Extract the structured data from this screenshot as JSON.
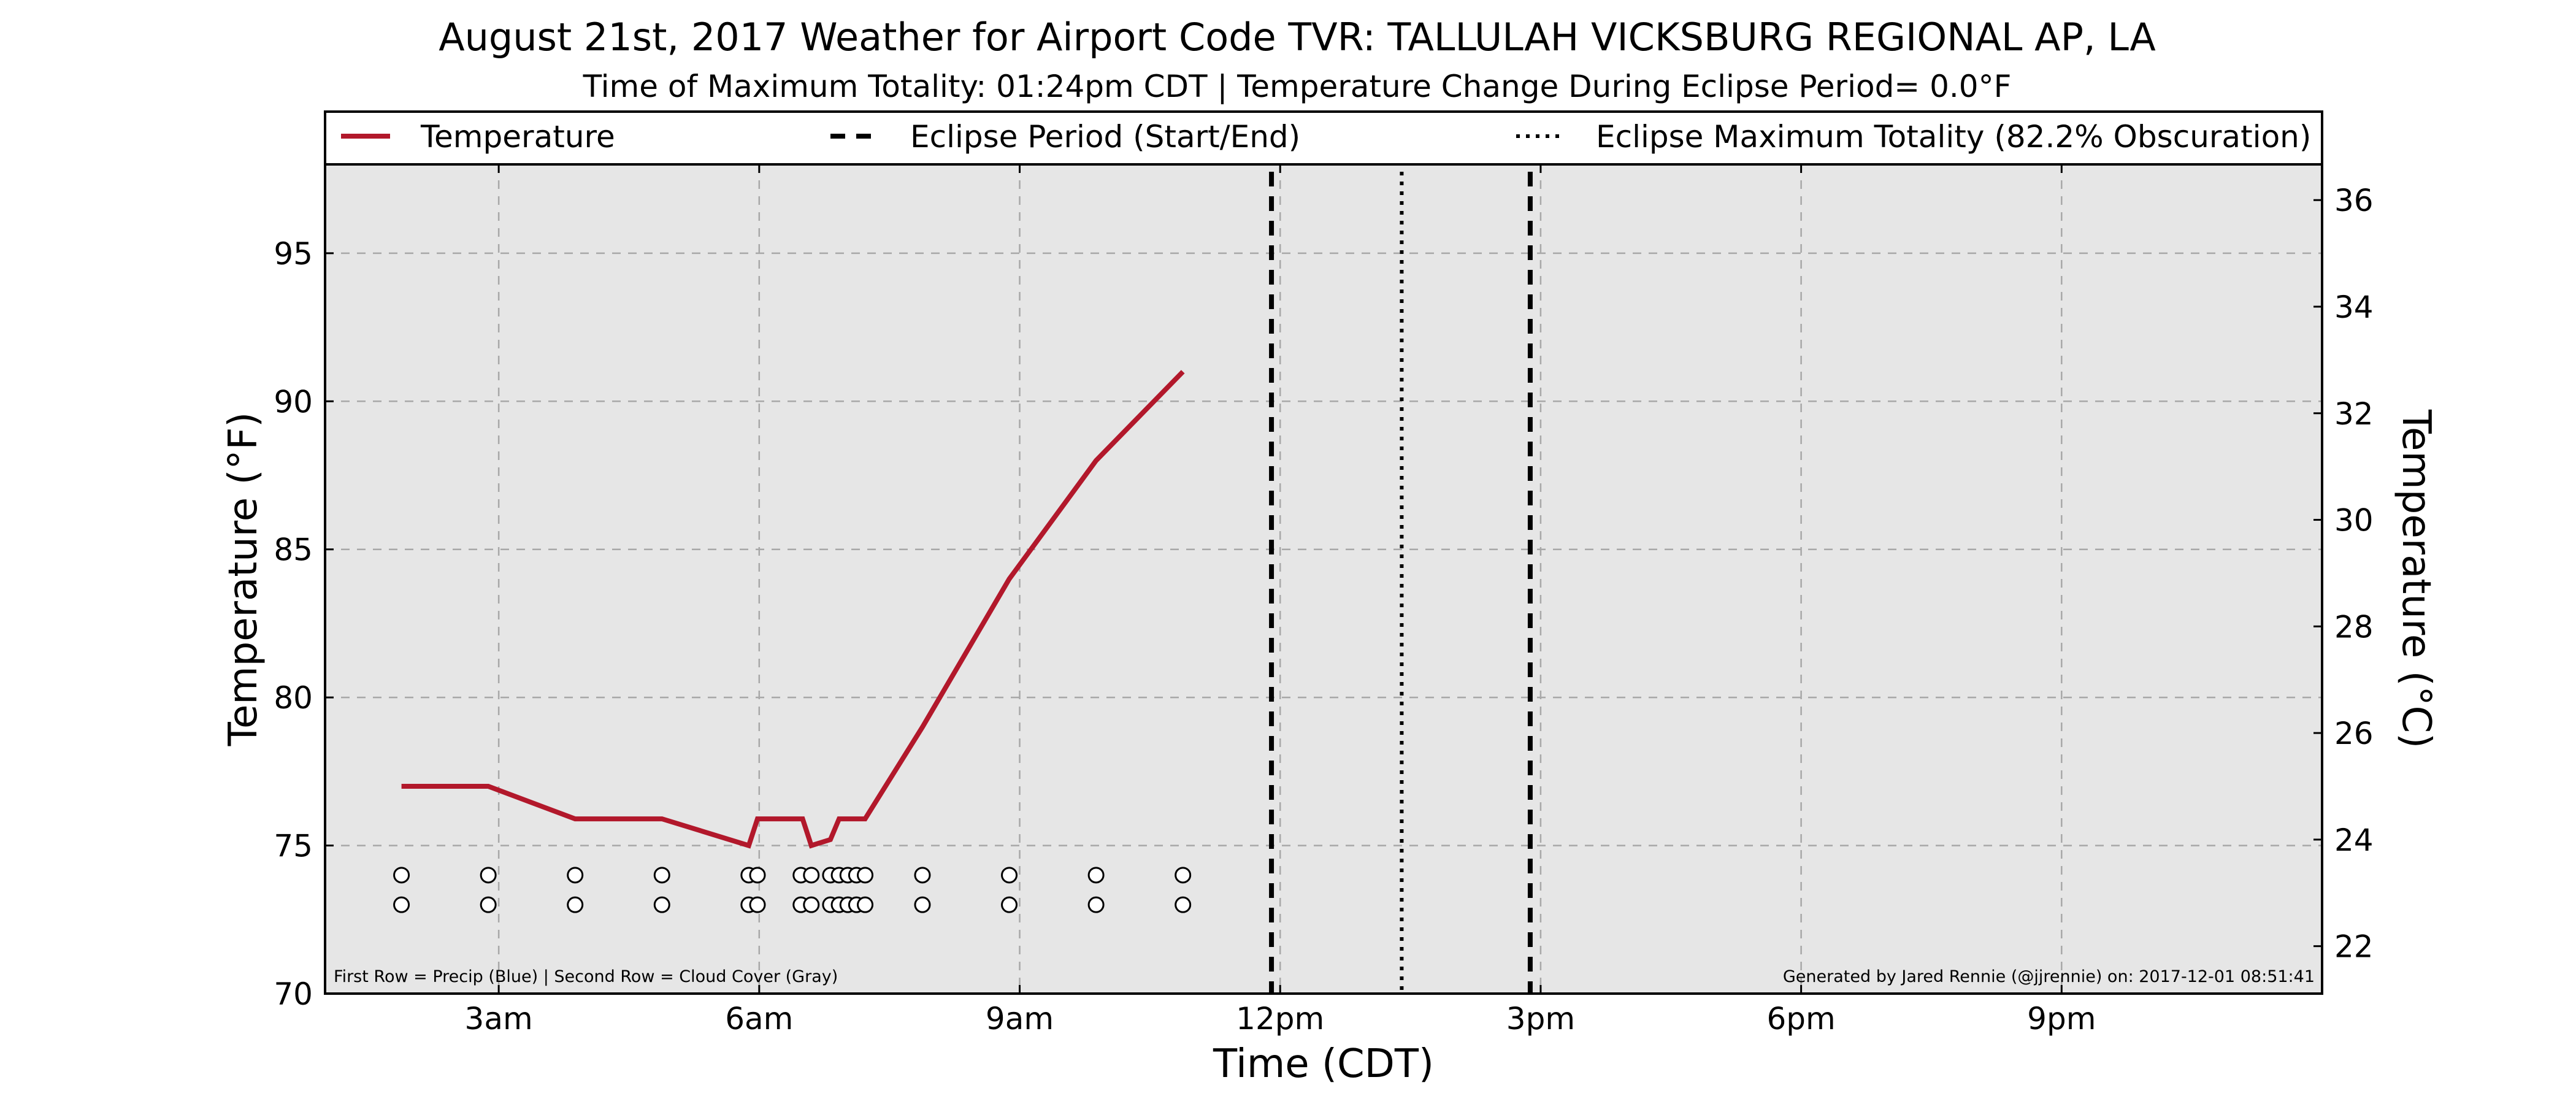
{
  "chart_data": {
    "type": "line",
    "title": "August 21st, 2017 Weather for Airport Code TVR: TALLULAH VICKSBURG REGIONAL AP, LA",
    "subtitle": "Time of Maximum Totality: 01:24pm CDT | Temperature Change During Eclipse Period= 0.0°F",
    "xlabel": "Time (CDT)",
    "ylabel": "Temperature (°F)",
    "ylabel_right": "Temperature (°C)",
    "xlim": [
      1.0,
      24.0
    ],
    "ylim": [
      70,
      98
    ],
    "ylim_right": [
      21.11,
      36.67
    ],
    "x_ticks": [
      3,
      6,
      9,
      12,
      15,
      18,
      21
    ],
    "x_tick_labels": [
      "3am",
      "6am",
      "9am",
      "12pm",
      "3pm",
      "6pm",
      "9pm"
    ],
    "y_ticks": [
      70,
      75,
      80,
      85,
      90,
      95
    ],
    "y_tick_labels": [
      "70",
      "75",
      "80",
      "85",
      "90",
      "95"
    ],
    "y_right_ticks": [
      22,
      24,
      26,
      28,
      30,
      32,
      34,
      36
    ],
    "y_right_tick_labels": [
      "22",
      "24",
      "26",
      "28",
      "30",
      "32",
      "34",
      "36"
    ],
    "grid": true,
    "legend_position": "top",
    "legend": [
      {
        "label": "Temperature",
        "style": "solid",
        "color": "#b2182b"
      },
      {
        "label": "Eclipse Period (Start/End)",
        "style": "dashed",
        "color": "#000000"
      },
      {
        "label": "Eclipse Maximum Totality (82.2% Obscuration)",
        "style": "dotted",
        "color": "#000000"
      }
    ],
    "series": [
      {
        "name": "Temperature",
        "color": "#b2182b",
        "x": [
          1.88,
          2.88,
          3.88,
          4.88,
          5.88,
          5.98,
          6.5,
          6.6,
          6.82,
          6.92,
          7.02,
          7.22,
          7.88,
          8.88,
          9.88,
          10.88
        ],
        "y": [
          77,
          77,
          75.9,
          75.9,
          75,
          75.9,
          75.9,
          75,
          75.2,
          75.9,
          75.9,
          75.9,
          79,
          84,
          88,
          91
        ]
      }
    ],
    "eclipse_start": 11.9,
    "eclipse_max": 13.4,
    "eclipse_end": 14.88,
    "marker_times": [
      1.88,
      2.88,
      3.88,
      4.88,
      5.88,
      5.98,
      6.48,
      6.6,
      6.82,
      6.92,
      7.02,
      7.12,
      7.22,
      7.88,
      8.88,
      9.88,
      10.88
    ],
    "marker_rows": [
      74,
      73
    ],
    "footnote_left": "First Row = Precip (Blue) | Second Row = Cloud Cover (Gray)",
    "footnote_right": "Generated by Jared Rennie (@jjrennie) on: 2017-12-01 08:51:41",
    "colors": {
      "temperature": "#b2182b",
      "plot_background": "#e6e6e6",
      "grid": "#a8a8a8",
      "eclipse_lines": "#000000",
      "markers_fill": "#ffffff"
    }
  }
}
